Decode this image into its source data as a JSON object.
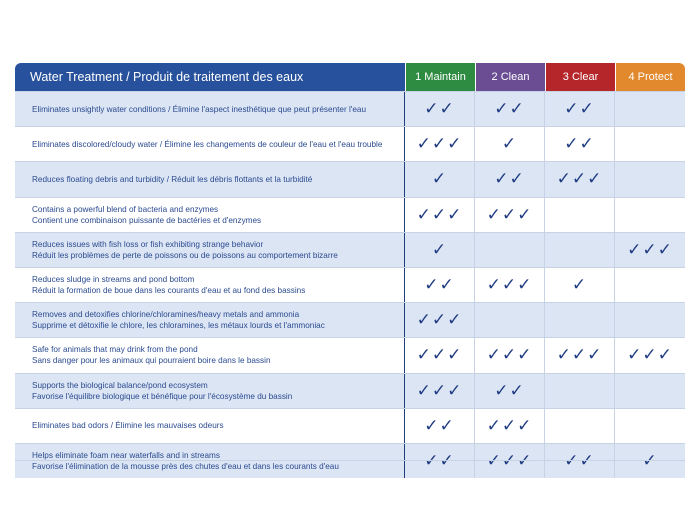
{
  "header": {
    "title": "Water Treatment / Produit de traitement des eaux",
    "columns": [
      {
        "label": "1 Maintain",
        "color": "#2e8b42"
      },
      {
        "label": "2 Clean",
        "color": "#6a4d93"
      },
      {
        "label": "3 Clear",
        "color": "#b5262a"
      },
      {
        "label": "4 Protect",
        "color": "#e2892e"
      }
    ]
  },
  "rows": [
    {
      "lines": [
        "Eliminates unsightly water conditions / Élimine l'aspect inesthétique que peut présenter l'eau"
      ],
      "checks": [
        "✓✓",
        "✓✓",
        "✓✓",
        ""
      ]
    },
    {
      "lines": [
        "Eliminates discolored/cloudy water / Élimine les changements de couleur de l'eau et l'eau trouble"
      ],
      "checks": [
        "✓✓✓",
        "✓",
        "✓✓",
        ""
      ]
    },
    {
      "lines": [
        "Reduces floating debris and turbidity / Réduit les débris flottants et la turbidité"
      ],
      "checks": [
        "✓",
        "✓✓",
        "✓✓✓",
        ""
      ]
    },
    {
      "lines": [
        "Contains a powerful blend of bacteria and enzymes",
        "Contient une combinaison puissante de bactéries et d'enzymes"
      ],
      "checks": [
        "✓✓✓",
        "✓✓✓",
        "",
        ""
      ]
    },
    {
      "lines": [
        "Reduces issues with fish loss or fish exhibiting strange behavior",
        "Réduit les problèmes de perte de poissons ou de poissons au comportement bizarre"
      ],
      "checks": [
        "✓",
        "",
        "",
        "✓✓✓"
      ]
    },
    {
      "lines": [
        "Reduces sludge in streams and pond bottom",
        "Réduit la formation de boue dans les courants d'eau et au fond des bassins"
      ],
      "checks": [
        "✓✓",
        "✓✓✓",
        "✓",
        ""
      ]
    },
    {
      "lines": [
        "Removes and detoxifies chlorine/chloramines/heavy metals and ammonia",
        "Supprime et détoxifie le chlore, les chloramines, les métaux lourds et l'ammoniac"
      ],
      "checks": [
        "✓✓✓",
        "",
        "",
        ""
      ]
    },
    {
      "lines": [
        "Safe for animals that may drink from the pond",
        "Sans danger pour les animaux qui pourraient boire dans le bassin"
      ],
      "checks": [
        "✓✓✓",
        "✓✓✓",
        "✓✓✓",
        "✓✓✓"
      ]
    },
    {
      "lines": [
        "Supports the biological balance/pond ecosystem",
        "Favorise l'équilibre biologique et bénéfique pour l'écosystème du bassin"
      ],
      "checks": [
        "✓✓✓",
        "✓✓",
        "",
        ""
      ]
    },
    {
      "lines": [
        "Eliminates bad odors / Élimine les mauvaises odeurs"
      ],
      "checks": [
        "✓✓",
        "✓✓✓",
        "",
        ""
      ]
    },
    {
      "lines": [
        "Helps eliminate foam near waterfalls and in streams",
        "Favorise l'élimination de la mousse près des chutes d'eau et dans les courants d'eau"
      ],
      "checks": [
        "✓✓",
        "✓✓✓",
        "✓✓",
        "✓"
      ]
    }
  ]
}
